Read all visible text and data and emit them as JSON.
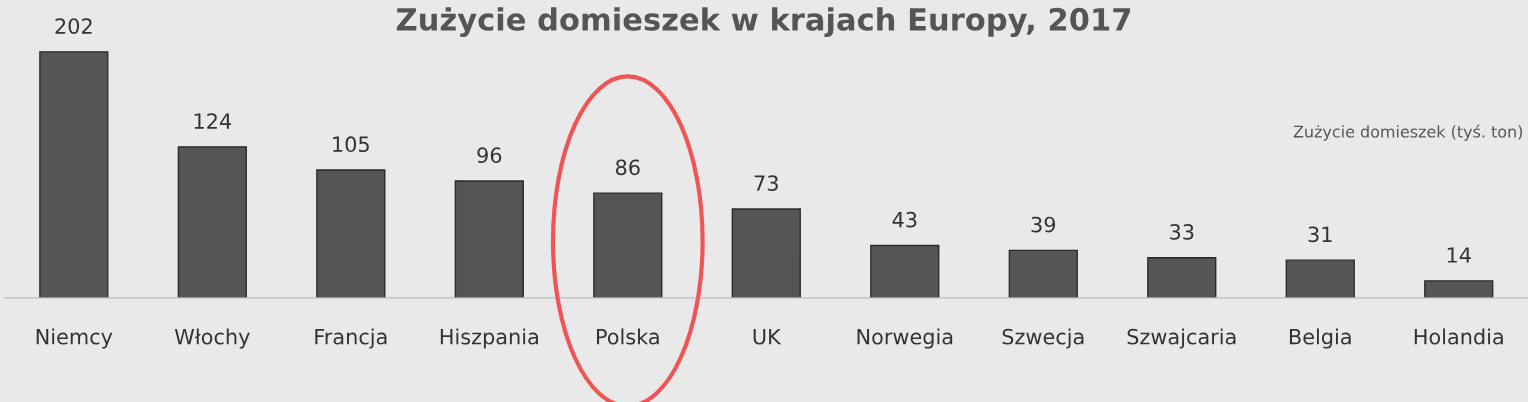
{
  "chart_data": {
    "type": "bar",
    "title": "Zużycie domieszek w krajach Europy, 2017",
    "categories": [
      "Niemcy",
      "Włochy",
      "Francja",
      "Hiszpania",
      "Polska",
      "UK",
      "Norwegia",
      "Szwecja",
      "Szwajcaria",
      "Belgia",
      "Holandia"
    ],
    "values": [
      202,
      124,
      105,
      96,
      86,
      73,
      43,
      39,
      33,
      31,
      14
    ],
    "color": "#555555",
    "data_labels": true,
    "annotations": [
      "Zużycie domieszek (tyś. ton)"
    ]
  }
}
